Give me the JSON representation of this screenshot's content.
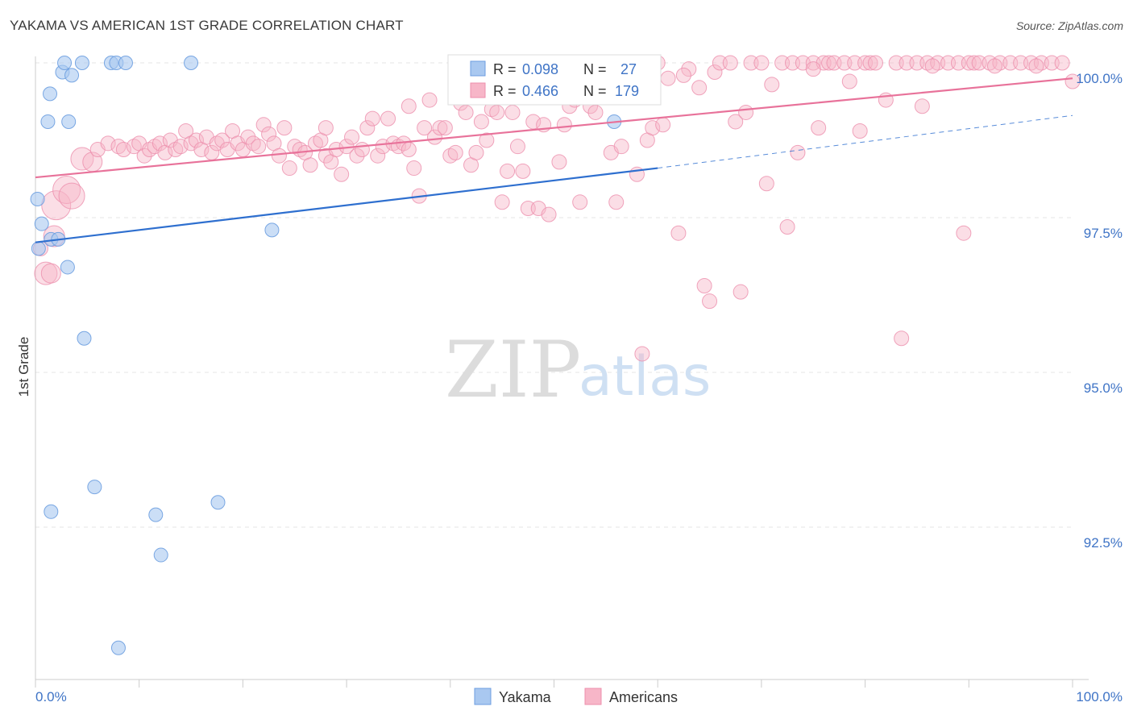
{
  "header": {
    "title": "YAKAMA VS AMERICAN 1ST GRADE CORRELATION CHART",
    "source": "Source: ZipAtlas.com"
  },
  "watermark": {
    "part1": "ZIP",
    "part2": "atlas"
  },
  "stats": {
    "yakama": {
      "r_label": "R = ",
      "r": "0.098",
      "n_label": "N = ",
      "n": "27"
    },
    "americans": {
      "r_label": "R = ",
      "r": "0.466",
      "n_label": "N = ",
      "n": "179"
    }
  },
  "colors": {
    "yakama_fill": "#a9c8f0",
    "yakama_stroke": "#6d9ee0",
    "yakama_line": "#2e6fcf",
    "americans_fill": "#f7b6c8",
    "americans_stroke": "#ec8fac",
    "americans_line": "#e8729a",
    "tick_label": "#3f74c6"
  },
  "chart_data": {
    "type": "scatter",
    "title": "YAKAMA VS AMERICAN 1ST GRADE CORRELATION CHART",
    "ylabel": "1st Grade",
    "xlim": [
      0,
      100
    ],
    "ylim": [
      90.2,
      100.4
    ],
    "x_tick_labels": [
      "0.0%",
      "100.0%"
    ],
    "y_ticks": [
      {
        "value": 100.0,
        "label": "100.0%"
      },
      {
        "value": 97.5,
        "label": "97.5%"
      },
      {
        "value": 95.0,
        "label": "95.0%"
      },
      {
        "value": 92.5,
        "label": "92.5%"
      }
    ],
    "grid": true,
    "legend_position": "bottom",
    "series": [
      {
        "name": "Yakama",
        "r": 0.098,
        "n": 27,
        "trend": {
          "x": [
            0,
            60
          ],
          "y": [
            97.1,
            98.3
          ]
        },
        "trend_dashed": {
          "x": [
            60,
            100
          ],
          "y": [
            98.3,
            99.15
          ]
        },
        "points": [
          [
            0.2,
            97.8
          ],
          [
            0.6,
            97.4
          ],
          [
            1.5,
            97.15
          ],
          [
            2.2,
            97.15
          ],
          [
            3.1,
            96.7
          ],
          [
            1.5,
            92.75
          ],
          [
            5.7,
            93.15
          ],
          [
            11.6,
            92.7
          ],
          [
            12.1,
            92.05
          ],
          [
            17.6,
            92.9
          ],
          [
            8.0,
            90.55
          ],
          [
            4.7,
            95.55
          ],
          [
            22.8,
            97.3
          ],
          [
            2.6,
            99.85
          ],
          [
            3.5,
            99.8
          ],
          [
            1.4,
            99.5
          ],
          [
            1.2,
            99.05
          ],
          [
            3.2,
            99.05
          ],
          [
            2.8,
            100.0
          ],
          [
            4.5,
            100.0
          ],
          [
            7.3,
            100.0
          ],
          [
            7.8,
            100.0
          ],
          [
            8.7,
            100.0
          ],
          [
            15.0,
            100.0
          ],
          [
            55.8,
            99.05
          ],
          [
            56.6,
            100.0
          ],
          [
            0.3,
            97.0
          ]
        ]
      },
      {
        "name": "Americans",
        "r": 0.466,
        "n": 179,
        "trend": {
          "x": [
            0,
            100
          ],
          "y": [
            98.15,
            99.75
          ]
        },
        "points": [
          [
            0.5,
            97.0
          ],
          [
            1.0,
            96.6
          ],
          [
            1.5,
            96.6
          ],
          [
            2.0,
            97.7
          ],
          [
            3.0,
            97.95
          ],
          [
            3.5,
            97.85
          ],
          [
            1.8,
            97.2
          ],
          [
            4.5,
            98.45
          ],
          [
            5.5,
            98.4
          ],
          [
            6.0,
            98.6
          ],
          [
            7.0,
            98.7
          ],
          [
            8.0,
            98.65
          ],
          [
            8.5,
            98.6
          ],
          [
            9.5,
            98.65
          ],
          [
            10.0,
            98.7
          ],
          [
            10.5,
            98.5
          ],
          [
            11.0,
            98.6
          ],
          [
            11.5,
            98.65
          ],
          [
            12.0,
            98.7
          ],
          [
            12.5,
            98.55
          ],
          [
            13.0,
            98.75
          ],
          [
            13.5,
            98.6
          ],
          [
            14.0,
            98.65
          ],
          [
            14.5,
            98.9
          ],
          [
            15.0,
            98.7
          ],
          [
            15.5,
            98.75
          ],
          [
            16.0,
            98.6
          ],
          [
            16.5,
            98.8
          ],
          [
            17.0,
            98.55
          ],
          [
            17.5,
            98.7
          ],
          [
            18.0,
            98.75
          ],
          [
            18.5,
            98.6
          ],
          [
            19.0,
            98.9
          ],
          [
            19.5,
            98.7
          ],
          [
            20.0,
            98.6
          ],
          [
            20.5,
            98.8
          ],
          [
            21.0,
            98.7
          ],
          [
            21.5,
            98.65
          ],
          [
            22.0,
            99.0
          ],
          [
            22.5,
            98.85
          ],
          [
            23.0,
            98.7
          ],
          [
            23.5,
            98.5
          ],
          [
            24.0,
            98.95
          ],
          [
            24.5,
            98.3
          ],
          [
            25.0,
            98.65
          ],
          [
            25.5,
            98.6
          ],
          [
            26.0,
            98.55
          ],
          [
            26.5,
            98.35
          ],
          [
            27.0,
            98.7
          ],
          [
            27.5,
            98.75
          ],
          [
            28.0,
            98.5
          ],
          [
            28.5,
            98.4
          ],
          [
            29.0,
            98.6
          ],
          [
            29.5,
            98.2
          ],
          [
            30.0,
            98.65
          ],
          [
            30.5,
            98.8
          ],
          [
            31.0,
            98.5
          ],
          [
            31.5,
            98.6
          ],
          [
            32.0,
            98.95
          ],
          [
            32.5,
            99.1
          ],
          [
            33.0,
            98.5
          ],
          [
            33.5,
            98.65
          ],
          [
            34.0,
            99.1
          ],
          [
            34.5,
            98.7
          ],
          [
            35.0,
            98.65
          ],
          [
            35.5,
            98.7
          ],
          [
            36.0,
            99.3
          ],
          [
            36.5,
            98.3
          ],
          [
            37.0,
            97.85
          ],
          [
            37.5,
            98.95
          ],
          [
            38.0,
            99.4
          ],
          [
            38.5,
            98.8
          ],
          [
            39.0,
            98.95
          ],
          [
            39.5,
            98.95
          ],
          [
            40.0,
            98.5
          ],
          [
            40.5,
            98.55
          ],
          [
            41.0,
            99.35
          ],
          [
            41.5,
            99.2
          ],
          [
            42.0,
            98.35
          ],
          [
            42.5,
            98.55
          ],
          [
            43.0,
            99.05
          ],
          [
            43.5,
            98.75
          ],
          [
            44.0,
            99.25
          ],
          [
            44.5,
            99.2
          ],
          [
            45.0,
            97.75
          ],
          [
            45.5,
            98.25
          ],
          [
            46.0,
            99.2
          ],
          [
            46.5,
            98.65
          ],
          [
            47.0,
            98.25
          ],
          [
            47.5,
            97.65
          ],
          [
            48.0,
            99.05
          ],
          [
            48.5,
            97.65
          ],
          [
            49.0,
            99.0
          ],
          [
            49.5,
            97.55
          ],
          [
            50.0,
            99.6
          ],
          [
            50.5,
            98.4
          ],
          [
            51.0,
            99.0
          ],
          [
            51.5,
            99.3
          ],
          [
            52.0,
            99.4
          ],
          [
            52.5,
            97.75
          ],
          [
            53.0,
            99.55
          ],
          [
            53.5,
            99.3
          ],
          [
            54.0,
            99.2
          ],
          [
            55.0,
            99.5
          ],
          [
            55.5,
            98.55
          ],
          [
            56.0,
            97.75
          ],
          [
            56.5,
            98.65
          ],
          [
            57.0,
            99.6
          ],
          [
            57.5,
            99.8
          ],
          [
            58.0,
            98.2
          ],
          [
            59.0,
            98.75
          ],
          [
            59.5,
            98.95
          ],
          [
            60.0,
            100.0
          ],
          [
            60.5,
            99.0
          ],
          [
            61.0,
            99.75
          ],
          [
            62.0,
            97.25
          ],
          [
            63.0,
            99.9
          ],
          [
            64.0,
            99.6
          ],
          [
            64.5,
            96.4
          ],
          [
            65.0,
            96.15
          ],
          [
            65.5,
            99.85
          ],
          [
            66.0,
            100.0
          ],
          [
            67.0,
            100.0
          ],
          [
            67.5,
            99.05
          ],
          [
            68.0,
            96.3
          ],
          [
            68.5,
            99.2
          ],
          [
            69.0,
            100.0
          ],
          [
            70.0,
            100.0
          ],
          [
            70.5,
            98.05
          ],
          [
            71.0,
            99.65
          ],
          [
            72.0,
            100.0
          ],
          [
            72.5,
            97.35
          ],
          [
            73.0,
            100.0
          ],
          [
            73.5,
            98.55
          ],
          [
            74.0,
            100.0
          ],
          [
            75.0,
            100.0
          ],
          [
            75.5,
            98.95
          ],
          [
            76.0,
            100.0
          ],
          [
            76.5,
            100.0
          ],
          [
            77.0,
            100.0
          ],
          [
            78.0,
            100.0
          ],
          [
            78.5,
            99.7
          ],
          [
            79.0,
            100.0
          ],
          [
            79.5,
            98.9
          ],
          [
            80.0,
            100.0
          ],
          [
            80.5,
            100.0
          ],
          [
            81.0,
            100.0
          ],
          [
            82.0,
            99.4
          ],
          [
            83.0,
            100.0
          ],
          [
            83.5,
            95.55
          ],
          [
            84.0,
            100.0
          ],
          [
            85.0,
            100.0
          ],
          [
            85.5,
            99.3
          ],
          [
            86.0,
            100.0
          ],
          [
            87.0,
            100.0
          ],
          [
            88.0,
            100.0
          ],
          [
            89.0,
            100.0
          ],
          [
            89.5,
            97.25
          ],
          [
            90.0,
            100.0
          ],
          [
            90.5,
            100.0
          ],
          [
            91.0,
            100.0
          ],
          [
            92.0,
            100.0
          ],
          [
            93.0,
            100.0
          ],
          [
            94.0,
            100.0
          ],
          [
            95.0,
            100.0
          ],
          [
            96.0,
            100.0
          ],
          [
            97.0,
            100.0
          ],
          [
            98.0,
            100.0
          ],
          [
            99.0,
            100.0
          ],
          [
            100.0,
            99.7
          ],
          [
            58.5,
            95.3
          ],
          [
            36.0,
            98.6
          ],
          [
            28.0,
            98.95
          ],
          [
            52.0,
            99.45
          ],
          [
            62.5,
            99.8
          ],
          [
            75.0,
            99.9
          ],
          [
            86.5,
            99.95
          ],
          [
            92.5,
            99.95
          ],
          [
            96.5,
            99.95
          ]
        ]
      }
    ]
  }
}
